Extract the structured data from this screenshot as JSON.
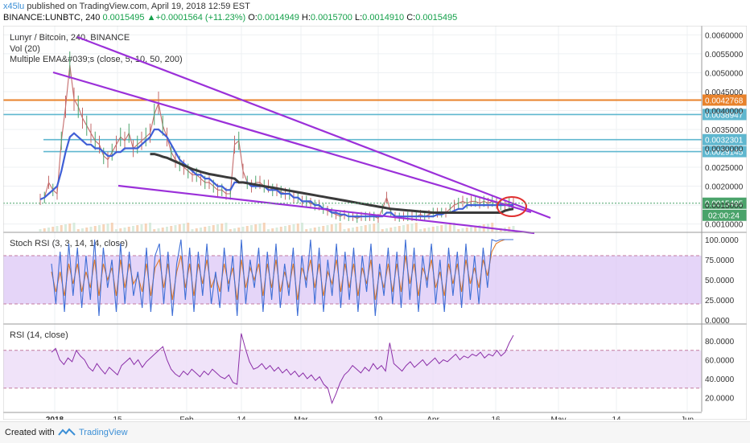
{
  "header": {
    "user": "x45lu",
    "published_text": "published on TradingView.com, April 19, 2018 12:59 EST",
    "symbol": "BINANCE:LUNBTC, 240",
    "last": "0.0015495",
    "change": "+0.0001564 (+11.23%)",
    "change_arrow": "▲",
    "o_label": "O:",
    "o_val": "0.0014949",
    "h_label": "H:",
    "h_val": "0.0015700",
    "l_label": "L:",
    "l_val": "0.0014910",
    "c_label": "C:",
    "c_val": "0.0015495"
  },
  "footer": {
    "created_with": "Created with",
    "brand": "TradingView"
  },
  "chart_data": [
    {
      "type": "line",
      "title": "Lunyr / Bitcoin, 240, BINANCE",
      "legend": [
        "Vol (20)",
        "Multiple EMA&#039;s (close, 5, 10, 50, 200)"
      ],
      "x_tick_labels": [
        "2018",
        "15",
        "Feb",
        "14",
        "Mar",
        "19",
        "Apr",
        "16",
        "May",
        "14",
        "Jun"
      ],
      "ylim": [
        0.0008,
        0.0062
      ],
      "y_ticks": [
        "0.0060000",
        "0.0055000",
        "0.0050000",
        "0.0045000",
        "0.0040000",
        "0.0035000",
        "0.0030000",
        "0.0025000",
        "0.0020000",
        "0.0015000",
        "0.0010000"
      ],
      "horizontal_levels": [
        {
          "label": "0.0042768",
          "value": 0.0042768,
          "color": "#e8822b"
        },
        {
          "label": "0.0038947",
          "value": 0.0038947,
          "color": "#5fb7cf"
        },
        {
          "label": "0.0032301",
          "value": 0.0032301,
          "color": "#5fb7cf"
        },
        {
          "label": "0.0029145",
          "value": 0.0029145,
          "color": "#5fb7cf"
        }
      ],
      "last_price_label": "0.0015495",
      "countdown_label": "02:00:24",
      "price_series": {
        "t": [
          0,
          1,
          2,
          3,
          4,
          5,
          6,
          7,
          8,
          9,
          10,
          11,
          12,
          13,
          14,
          15,
          16,
          17,
          18,
          19,
          20,
          21,
          22,
          23,
          24,
          25,
          26,
          27,
          28,
          29,
          30,
          31,
          32,
          33,
          34,
          35,
          36,
          37,
          38,
          39,
          40,
          41,
          42,
          43,
          44,
          45,
          46,
          47,
          48,
          49,
          50,
          51,
          52,
          53,
          54,
          55,
          56,
          57,
          58,
          59,
          60,
          61,
          62,
          63,
          64,
          65,
          66,
          67,
          68,
          69,
          70,
          71,
          72,
          73,
          74,
          75,
          76,
          77,
          78,
          79,
          80,
          81,
          82,
          83,
          84,
          85,
          86,
          87,
          88,
          89,
          90,
          91,
          92,
          93,
          94,
          95,
          96,
          97,
          98,
          99,
          100,
          101,
          102,
          103,
          104,
          105,
          106,
          107,
          108,
          109,
          110,
          111,
          112
        ],
        "close": [
          0.00165,
          0.0017,
          0.0021,
          0.0019,
          0.0018,
          0.0032,
          0.0041,
          0.0052,
          0.0043,
          0.0041,
          0.0038,
          0.0036,
          0.0034,
          0.0032,
          0.0031,
          0.0028,
          0.0027,
          0.0029,
          0.0031,
          0.0033,
          0.0032,
          0.0034,
          0.003,
          0.0031,
          0.0032,
          0.0033,
          0.0034,
          0.0039,
          0.0042,
          0.0036,
          0.0033,
          0.0029,
          0.0027,
          0.0026,
          0.0025,
          0.0024,
          0.0023,
          0.0023,
          0.0022,
          0.0021,
          0.0021,
          0.002,
          0.0019,
          0.0019,
          0.0018,
          0.0018,
          0.0031,
          0.0032,
          0.0024,
          0.0021,
          0.002,
          0.0021,
          0.0021,
          0.002,
          0.002,
          0.0019,
          0.0019,
          0.00185,
          0.0018,
          0.0018,
          0.0017,
          0.0017,
          0.0016,
          0.0016,
          0.00155,
          0.0015,
          0.0015,
          0.0014,
          0.00135,
          0.0013,
          0.00125,
          0.0012,
          0.00125,
          0.0012,
          0.0012,
          0.00115,
          0.0012,
          0.0012,
          0.0012,
          0.0012,
          0.00115,
          0.0014,
          0.0017,
          0.0013,
          0.0012,
          0.00118,
          0.0012,
          0.0012,
          0.0012,
          0.0012,
          0.00125,
          0.0012,
          0.00125,
          0.0013,
          0.0013,
          0.0013,
          0.0013,
          0.0014,
          0.0015,
          0.00155,
          0.0016,
          0.00155,
          0.0016,
          0.0016,
          0.00155,
          0.0016,
          0.00155,
          0.0016,
          0.00155,
          0.0015,
          0.0015,
          0.00155,
          0.00155
        ]
      },
      "ema_fast": {
        "color": "#3f5fd6",
        "close_series": [
          0.00165,
          0.0017,
          0.0018,
          0.0019,
          0.002,
          0.0024,
          0.0029,
          0.0033,
          0.0034,
          0.0033,
          0.0032,
          0.0031,
          0.0031,
          0.003,
          0.003,
          0.0029,
          0.0028,
          0.0028,
          0.0029,
          0.0029,
          0.003,
          0.003,
          0.003,
          0.003,
          0.0031,
          0.0032,
          0.0033,
          0.0035,
          0.0035,
          0.0034,
          0.0033,
          0.0031,
          0.0029,
          0.0027,
          0.0026,
          0.0025,
          0.0024,
          0.0023,
          0.0023,
          0.0022,
          0.0022,
          0.0021,
          0.002,
          0.002,
          0.0019,
          0.0019,
          0.0021,
          0.0021,
          0.0021,
          0.0021,
          0.002,
          0.002,
          0.002,
          0.002,
          0.0019,
          0.0019,
          0.0019,
          0.0018,
          0.0018,
          0.0018,
          0.0017,
          0.0017,
          0.0016,
          0.0016,
          0.0016,
          0.0015,
          0.0015,
          0.0014,
          0.0014,
          0.0013,
          0.0013,
          0.00125,
          0.00125,
          0.0012,
          0.0012,
          0.0012,
          0.0012,
          0.0012,
          0.0012,
          0.0012,
          0.0012,
          0.0012,
          0.0013,
          0.0013,
          0.0012,
          0.0012,
          0.0012,
          0.0012,
          0.0012,
          0.0012,
          0.0012,
          0.0012,
          0.0012,
          0.0012,
          0.00125,
          0.00125,
          0.0013,
          0.0013,
          0.00135,
          0.0014,
          0.0014,
          0.0015,
          0.0015,
          0.0015,
          0.0015,
          0.0015,
          0.0015,
          0.0015,
          0.0015,
          0.0015,
          0.0015,
          0.0015,
          0.0015
        ]
      },
      "ema_slow": {
        "color": "#3a3a3a",
        "t_start": 26,
        "close_series": [
          0.00285,
          0.00285,
          0.00282,
          0.00278,
          0.00275,
          0.0027,
          0.00265,
          0.0026,
          0.00255,
          0.0025,
          0.00245,
          0.00242,
          0.00238,
          0.00235,
          0.00232,
          0.0023,
          0.00228,
          0.00226,
          0.00224,
          0.00222,
          0.0022,
          0.0021,
          0.0021,
          0.00208,
          0.00206,
          0.00204,
          0.00202,
          0.002,
          0.00198,
          0.00196,
          0.00194,
          0.00192,
          0.0019,
          0.00188,
          0.00186,
          0.00184,
          0.00182,
          0.0018,
          0.00178,
          0.00176,
          0.00174,
          0.00172,
          0.0017,
          0.00168,
          0.00166,
          0.00164,
          0.00162,
          0.0016,
          0.00158,
          0.00156,
          0.00154,
          0.00152,
          0.0015,
          0.00148,
          0.00146,
          0.00144,
          0.00142,
          0.0014,
          0.00139,
          0.00138,
          0.00137,
          0.00136,
          0.00135,
          0.00134,
          0.00133,
          0.00132,
          0.00131,
          0.0013,
          0.0013,
          0.0013,
          0.0013,
          0.0013,
          0.0013,
          0.0013,
          0.0013,
          0.0013,
          0.0013,
          0.0013,
          0.0013,
          0.0013,
          0.0013,
          0.0013,
          0.0013,
          0.0013,
          0.00135,
          0.00138,
          0.0014
        ]
      },
      "trendlines_color": "#9b30d9",
      "annotation_circle_color": "#e03030"
    },
    {
      "type": "line",
      "title": "Stoch RSI (3, 3, 14, 14, close)",
      "ylim": [
        0,
        100
      ],
      "y_ticks": [
        "100.0000",
        "75.0000",
        "50.0000",
        "25.0000",
        "0.0000"
      ],
      "band": [
        20,
        80
      ],
      "k_color": "#3f6fd6",
      "d_color": "#e07a2a",
      "k": [
        70,
        20,
        85,
        10,
        95,
        30,
        90,
        15,
        80,
        25,
        100,
        5,
        90,
        40,
        75,
        10,
        95,
        20,
        85,
        30,
        60,
        15,
        90,
        10,
        80,
        95,
        20,
        85,
        5,
        70,
        100,
        25,
        90,
        10,
        85,
        30,
        95,
        20,
        60,
        15,
        90,
        35,
        80,
        5,
        100,
        20,
        75,
        40,
        90,
        10,
        85,
        25,
        95,
        15,
        70,
        30,
        90,
        5,
        80,
        40,
        100,
        20,
        90,
        10,
        75,
        30,
        95,
        15,
        85,
        25,
        90,
        10,
        80,
        35,
        95,
        5,
        70,
        30,
        90,
        20,
        85,
        15,
        100,
        25,
        90,
        10,
        80,
        40,
        95,
        20,
        75,
        10,
        90,
        30,
        85,
        15,
        95,
        25,
        80,
        20,
        90,
        40,
        100,
        98,
        100,
        100,
        100,
        100
      ],
      "d": [
        60,
        35,
        60,
        30,
        70,
        45,
        70,
        35,
        60,
        40,
        75,
        30,
        70,
        50,
        65,
        30,
        75,
        40,
        70,
        45,
        55,
        35,
        70,
        30,
        65,
        75,
        40,
        70,
        25,
        60,
        80,
        40,
        70,
        30,
        70,
        45,
        75,
        40,
        55,
        35,
        70,
        45,
        65,
        25,
        75,
        40,
        65,
        50,
        70,
        30,
        70,
        40,
        75,
        35,
        60,
        40,
        70,
        25,
        65,
        50,
        75,
        40,
        70,
        30,
        60,
        45,
        75,
        35,
        70,
        40,
        70,
        30,
        65,
        45,
        75,
        25,
        60,
        40,
        70,
        35,
        70,
        35,
        80,
        45,
        70,
        30,
        65,
        50,
        75,
        40,
        60,
        30,
        70,
        45,
        70,
        35,
        75,
        45,
        65,
        40,
        75,
        55,
        85,
        95,
        98,
        100,
        100,
        100
      ]
    },
    {
      "type": "line",
      "title": "RSI (14, close)",
      "ylim": [
        5,
        92
      ],
      "y_ticks": [
        "80.0000",
        "60.0000",
        "40.0000",
        "20.0000"
      ],
      "band": [
        30,
        70
      ],
      "color": "#8b2fa8",
      "values": [
        68,
        72,
        60,
        55,
        62,
        58,
        70,
        64,
        60,
        52,
        48,
        56,
        50,
        45,
        52,
        48,
        44,
        54,
        58,
        62,
        55,
        60,
        52,
        58,
        62,
        66,
        70,
        74,
        60,
        50,
        45,
        42,
        48,
        44,
        50,
        46,
        42,
        48,
        44,
        50,
        46,
        42,
        40,
        44,
        36,
        34,
        88,
        72,
        58,
        50,
        52,
        56,
        50,
        54,
        48,
        52,
        46,
        50,
        44,
        48,
        42,
        46,
        40,
        44,
        38,
        42,
        34,
        30,
        14,
        24,
        36,
        44,
        48,
        54,
        50,
        46,
        52,
        48,
        56,
        50,
        54,
        48,
        78,
        56,
        52,
        48,
        54,
        58,
        52,
        56,
        60,
        54,
        58,
        62,
        56,
        60,
        58,
        62,
        66,
        60,
        64,
        62,
        66,
        64,
        68,
        62,
        66,
        64,
        70,
        64,
        68,
        78,
        86
      ]
    }
  ]
}
